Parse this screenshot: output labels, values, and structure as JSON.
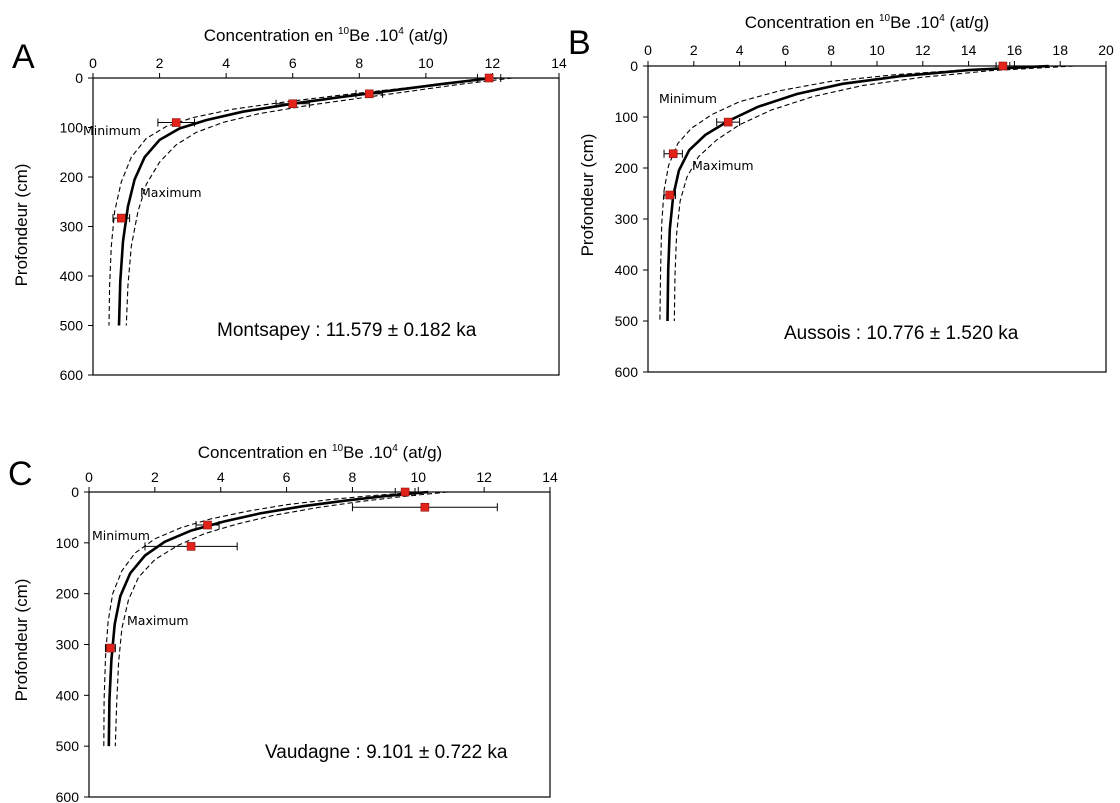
{
  "chart_data": [
    {
      "id": "A",
      "type": "line",
      "letter": "A",
      "xlabel": "Concentration en ",
      "xlabel_isotope": "10",
      "xlabel_element": "Be .10",
      "xlabel_exp": "4",
      "xlabel_unit": " (at/g)",
      "ylabel": "Profondeur (cm)",
      "xlim": [
        0,
        14
      ],
      "ylim": [
        0,
        600
      ],
      "xticks": [
        0,
        2,
        4,
        6,
        8,
        10,
        12,
        14
      ],
      "yticks": [
        0,
        100,
        200,
        300,
        400,
        500,
        600
      ],
      "annotation_min": "Minimum",
      "annotation_max": "Maximum",
      "result_text": "Montsapey : 11.579 ± 0.182 ka",
      "points": [
        {
          "x": 11.9,
          "y": 0,
          "xerr": 0.35
        },
        {
          "x": 8.3,
          "y": 32,
          "xerr": 0.4
        },
        {
          "x": 6.0,
          "y": 52,
          "xerr": 0.5
        },
        {
          "x": 2.5,
          "y": 90,
          "xerr": 0.55
        },
        {
          "x": 0.85,
          "y": 283,
          "xerr": 0.25
        }
      ],
      "series": [
        {
          "role": "best",
          "points": [
            [
              12.0,
              0
            ],
            [
              10.5,
              12
            ],
            [
              9.0,
              25
            ],
            [
              7.5,
              38
            ],
            [
              6.0,
              52
            ],
            [
              4.5,
              68
            ],
            [
              3.4,
              85
            ],
            [
              2.6,
              102
            ],
            [
              2.0,
              125
            ],
            [
              1.55,
              160
            ],
            [
              1.25,
              205
            ],
            [
              1.05,
              260
            ],
            [
              0.9,
              330
            ],
            [
              0.82,
              410
            ],
            [
              0.78,
              500
            ]
          ]
        },
        {
          "role": "minimum",
          "points": [
            [
              12.2,
              0
            ],
            [
              10.6,
              11
            ],
            [
              9.0,
              23
            ],
            [
              7.4,
              35
            ],
            [
              5.8,
              48
            ],
            [
              4.2,
              63
            ],
            [
              3.0,
              80
            ],
            [
              2.2,
              98
            ],
            [
              1.6,
              122
            ],
            [
              1.15,
              160
            ],
            [
              0.85,
              210
            ],
            [
              0.65,
              270
            ],
            [
              0.55,
              340
            ],
            [
              0.5,
              420
            ],
            [
              0.48,
              500
            ]
          ]
        },
        {
          "role": "maximum",
          "points": [
            [
              12.6,
              0
            ],
            [
              11.0,
              13
            ],
            [
              9.6,
              26
            ],
            [
              8.2,
              39
            ],
            [
              6.6,
              54
            ],
            [
              5.0,
              72
            ],
            [
              3.9,
              90
            ],
            [
              3.1,
              110
            ],
            [
              2.5,
              135
            ],
            [
              2.0,
              170
            ],
            [
              1.6,
              215
            ],
            [
              1.35,
              270
            ],
            [
              1.15,
              340
            ],
            [
              1.05,
              420
            ],
            [
              1.0,
              500
            ]
          ]
        }
      ]
    },
    {
      "id": "B",
      "type": "line",
      "letter": "B",
      "xlabel": "Concentration en ",
      "xlabel_isotope": "10",
      "xlabel_element": "Be .10",
      "xlabel_exp": "4",
      "xlabel_unit": " (at/g)",
      "ylabel": "Profondeur (cm)",
      "xlim": [
        0,
        20
      ],
      "ylim": [
        0,
        600
      ],
      "xticks": [
        0,
        2,
        4,
        6,
        8,
        10,
        12,
        14,
        16,
        18,
        20
      ],
      "yticks": [
        0,
        100,
        200,
        300,
        400,
        500,
        600
      ],
      "annotation_min": "Minimum",
      "annotation_max": "Maximum",
      "result_text": "Aussois : 10.776 ± 1.520 ka",
      "points": [
        {
          "x": 15.5,
          "y": 0,
          "xerr": 0.3
        },
        {
          "x": 3.5,
          "y": 110,
          "xerr": 0.5
        },
        {
          "x": 1.1,
          "y": 172,
          "xerr": 0.4
        },
        {
          "x": 0.95,
          "y": 253,
          "xerr": 0.25
        }
      ],
      "series": [
        {
          "role": "best",
          "points": [
            [
              17.5,
              0
            ],
            [
              14.0,
              8
            ],
            [
              11.0,
              20
            ],
            [
              8.5,
              35
            ],
            [
              6.5,
              55
            ],
            [
              4.8,
              80
            ],
            [
              3.5,
              108
            ],
            [
              2.5,
              135
            ],
            [
              1.8,
              165
            ],
            [
              1.35,
              205
            ],
            [
              1.1,
              255
            ],
            [
              0.95,
              320
            ],
            [
              0.88,
              400
            ],
            [
              0.85,
              500
            ]
          ]
        },
        {
          "role": "minimum",
          "points": [
            [
              17.8,
              0
            ],
            [
              14.0,
              7
            ],
            [
              10.8,
              17
            ],
            [
              8.0,
              30
            ],
            [
              5.8,
              48
            ],
            [
              4.0,
              70
            ],
            [
              2.8,
              95
            ],
            [
              1.9,
              122
            ],
            [
              1.3,
              152
            ],
            [
              0.9,
              195
            ],
            [
              0.7,
              245
            ],
            [
              0.6,
              310
            ],
            [
              0.55,
              400
            ],
            [
              0.52,
              500
            ]
          ]
        },
        {
          "role": "maximum",
          "points": [
            [
              18.6,
              0
            ],
            [
              15.0,
              9
            ],
            [
              12.0,
              22
            ],
            [
              9.4,
              38
            ],
            [
              7.2,
              60
            ],
            [
              5.4,
              86
            ],
            [
              4.0,
              115
            ],
            [
              3.0,
              145
            ],
            [
              2.2,
              178
            ],
            [
              1.7,
              218
            ],
            [
              1.4,
              265
            ],
            [
              1.25,
              330
            ],
            [
              1.18,
              410
            ],
            [
              1.15,
              500
            ]
          ]
        }
      ]
    },
    {
      "id": "C",
      "type": "line",
      "letter": "C",
      "xlabel": "Concentration en ",
      "xlabel_isotope": "10",
      "xlabel_element": "Be .10",
      "xlabel_exp": "4",
      "xlabel_unit": " (at/g)",
      "ylabel": "Profondeur (cm)",
      "xlim": [
        0,
        14
      ],
      "ylim": [
        0,
        600
      ],
      "xticks": [
        0,
        2,
        4,
        6,
        8,
        10,
        12,
        14
      ],
      "yticks": [
        0,
        100,
        200,
        300,
        400,
        500,
        600
      ],
      "annotation_min": "Minimum",
      "annotation_max": "Maximum",
      "result_text": "Vaudagne : 9.101 ± 0.722 ka",
      "points": [
        {
          "x": 9.6,
          "y": 0,
          "xerr": 0.3
        },
        {
          "x": 10.2,
          "y": 30,
          "xerr": 2.2
        },
        {
          "x": 3.6,
          "y": 65,
          "xerr": 0.35
        },
        {
          "x": 3.1,
          "y": 107,
          "xerr": 1.4
        },
        {
          "x": 0.65,
          "y": 307,
          "xerr": 0.15
        }
      ],
      "series": [
        {
          "role": "best",
          "points": [
            [
              10.3,
              0
            ],
            [
              9.0,
              8
            ],
            [
              7.8,
              17
            ],
            [
              6.5,
              28
            ],
            [
              5.2,
              42
            ],
            [
              4.1,
              58
            ],
            [
              3.1,
              76
            ],
            [
              2.3,
              98
            ],
            [
              1.7,
              125
            ],
            [
              1.25,
              160
            ],
            [
              0.95,
              205
            ],
            [
              0.78,
              260
            ],
            [
              0.68,
              330
            ],
            [
              0.62,
              410
            ],
            [
              0.6,
              500
            ]
          ]
        },
        {
          "role": "minimum",
          "points": [
            [
              10.0,
              0
            ],
            [
              8.6,
              7
            ],
            [
              7.3,
              15
            ],
            [
              6.0,
              25
            ],
            [
              4.8,
              38
            ],
            [
              3.7,
              53
            ],
            [
              2.8,
              70
            ],
            [
              2.0,
              92
            ],
            [
              1.4,
              120
            ],
            [
              1.0,
              155
            ],
            [
              0.72,
              200
            ],
            [
              0.58,
              255
            ],
            [
              0.5,
              325
            ],
            [
              0.46,
              410
            ],
            [
              0.45,
              500
            ]
          ]
        },
        {
          "role": "maximum",
          "points": [
            [
              10.9,
              0
            ],
            [
              9.5,
              9
            ],
            [
              8.2,
              19
            ],
            [
              6.9,
              31
            ],
            [
              5.6,
              46
            ],
            [
              4.5,
              63
            ],
            [
              3.5,
              82
            ],
            [
              2.7,
              105
            ],
            [
              2.0,
              133
            ],
            [
              1.5,
              168
            ],
            [
              1.2,
              212
            ],
            [
              1.0,
              268
            ],
            [
              0.9,
              335
            ],
            [
              0.84,
              415
            ],
            [
              0.8,
              500
            ]
          ]
        }
      ]
    }
  ]
}
